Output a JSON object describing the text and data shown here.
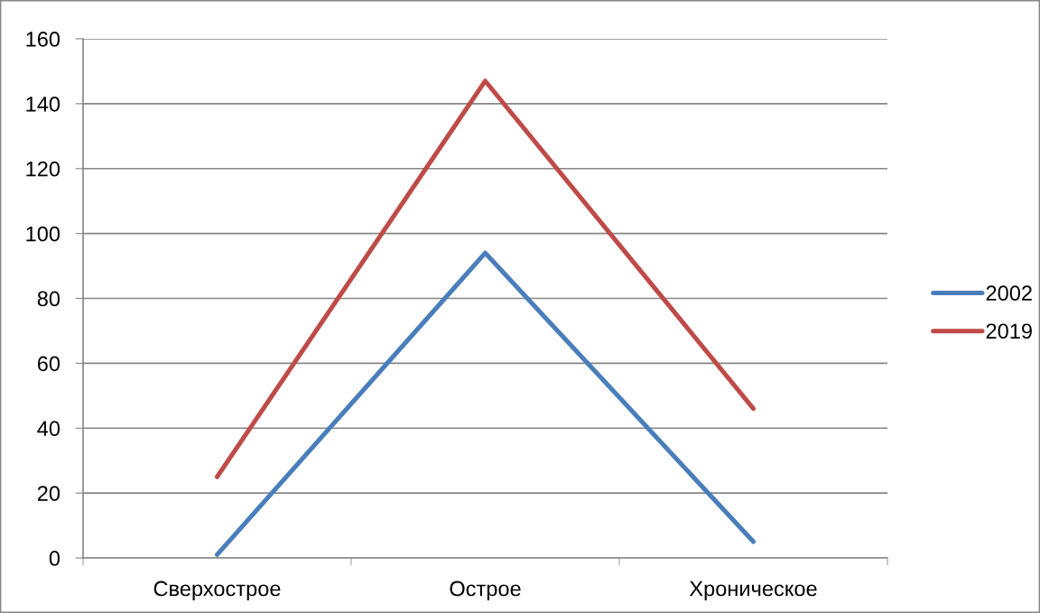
{
  "chart_data": {
    "type": "line",
    "categories": [
      "Сверхострое",
      "Острое",
      "Хроническое"
    ],
    "series": [
      {
        "name": "2002",
        "color": "#4a7ebb",
        "values": [
          1,
          94,
          5
        ]
      },
      {
        "name": "2019",
        "color": "#be4b48",
        "values": [
          25,
          147,
          46
        ]
      }
    ],
    "ylim": [
      0,
      160
    ],
    "yticks": [
      0,
      20,
      40,
      60,
      80,
      100,
      120,
      140,
      160
    ],
    "grid": "y",
    "legend": "right",
    "line_style": "solid"
  }
}
